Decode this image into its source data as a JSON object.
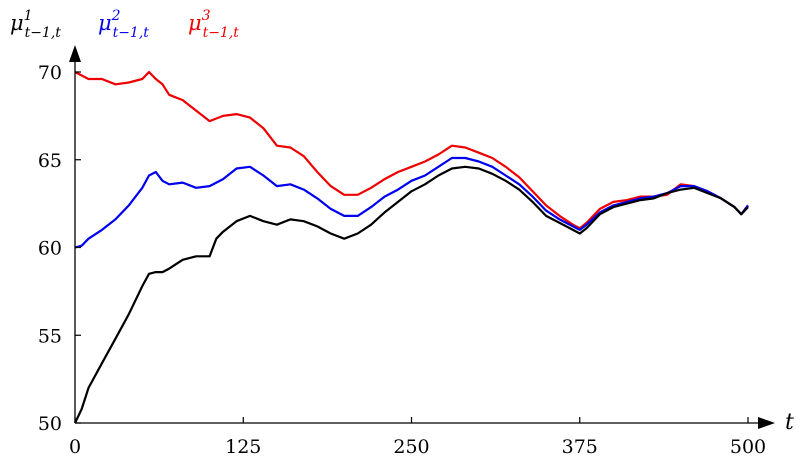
{
  "chart_data": {
    "type": "line",
    "xlabel": "t",
    "x_ticks": [
      0,
      125,
      250,
      375,
      500
    ],
    "y_ticks": [
      50,
      55,
      60,
      65,
      70
    ],
    "xlim": [
      0,
      500
    ],
    "ylim": [
      50,
      70
    ],
    "legend": [
      {
        "label": "μ",
        "sup": "1",
        "sub": "t−1,t",
        "color": "#000000"
      },
      {
        "label": "μ",
        "sup": "2",
        "sub": "t−1,t",
        "color": "#0000ee"
      },
      {
        "label": "μ",
        "sup": "3",
        "sub": "t−1,t",
        "color": "#ee0000"
      }
    ],
    "series": [
      {
        "name": "μ¹ t−1,t",
        "color": "#000000",
        "x": [
          0,
          5,
          10,
          20,
          30,
          40,
          50,
          55,
          60,
          65,
          70,
          80,
          90,
          100,
          105,
          110,
          120,
          130,
          140,
          150,
          160,
          170,
          180,
          190,
          200,
          210,
          220,
          230,
          240,
          250,
          260,
          270,
          280,
          290,
          300,
          310,
          320,
          330,
          340,
          350,
          360,
          370,
          375,
          380,
          390,
          400,
          410,
          420,
          430,
          440,
          450,
          460,
          470,
          480,
          490,
          495,
          500
        ],
        "y": [
          50.0,
          50.8,
          52.0,
          53.4,
          54.8,
          56.2,
          57.8,
          58.5,
          58.6,
          58.6,
          58.8,
          59.3,
          59.5,
          59.5,
          60.5,
          60.9,
          61.5,
          61.8,
          61.5,
          61.3,
          61.6,
          61.5,
          61.2,
          60.8,
          60.5,
          60.8,
          61.3,
          62.0,
          62.6,
          63.2,
          63.6,
          64.1,
          64.5,
          64.6,
          64.5,
          64.2,
          63.8,
          63.3,
          62.6,
          61.8,
          61.4,
          61.0,
          60.8,
          61.1,
          61.9,
          62.3,
          62.5,
          62.7,
          62.8,
          63.1,
          63.3,
          63.4,
          63.1,
          62.8,
          62.3,
          61.9,
          62.3
        ]
      },
      {
        "name": "μ² t−1,t",
        "color": "#0000ee",
        "x": [
          0,
          5,
          10,
          20,
          30,
          40,
          50,
          55,
          60,
          65,
          70,
          80,
          90,
          100,
          110,
          120,
          130,
          140,
          150,
          160,
          170,
          180,
          190,
          200,
          210,
          220,
          230,
          240,
          250,
          260,
          270,
          280,
          290,
          300,
          310,
          320,
          330,
          340,
          350,
          360,
          370,
          375,
          380,
          390,
          400,
          410,
          420,
          430,
          440,
          450,
          460,
          470,
          480,
          490,
          495,
          500
        ],
        "y": [
          60.0,
          60.1,
          60.5,
          61.0,
          61.6,
          62.4,
          63.4,
          64.1,
          64.3,
          63.8,
          63.6,
          63.7,
          63.4,
          63.5,
          63.9,
          64.5,
          64.6,
          64.1,
          63.5,
          63.6,
          63.3,
          62.8,
          62.2,
          61.8,
          61.8,
          62.3,
          62.9,
          63.3,
          63.8,
          64.1,
          64.6,
          65.1,
          65.1,
          64.9,
          64.6,
          64.1,
          63.6,
          62.9,
          62.1,
          61.6,
          61.2,
          61.0,
          61.3,
          62.0,
          62.4,
          62.6,
          62.8,
          62.9,
          63.1,
          63.5,
          63.5,
          63.2,
          62.8,
          62.3,
          61.9,
          62.4
        ]
      },
      {
        "name": "μ³ t−1,t",
        "color": "#ee0000",
        "x": [
          0,
          5,
          10,
          20,
          30,
          40,
          50,
          55,
          60,
          65,
          70,
          80,
          90,
          100,
          110,
          120,
          130,
          140,
          150,
          160,
          170,
          180,
          190,
          200,
          210,
          220,
          230,
          240,
          250,
          260,
          270,
          280,
          290,
          300,
          310,
          320,
          330,
          340,
          350,
          360,
          370,
          375,
          380,
          390,
          400,
          410,
          420,
          430,
          440,
          450,
          460,
          470,
          480,
          490,
          495,
          500
        ],
        "y": [
          70.0,
          69.8,
          69.6,
          69.6,
          69.3,
          69.4,
          69.6,
          70.0,
          69.6,
          69.3,
          68.7,
          68.4,
          67.8,
          67.2,
          67.5,
          67.6,
          67.4,
          66.8,
          65.8,
          65.7,
          65.2,
          64.3,
          63.5,
          63.0,
          63.0,
          63.4,
          63.9,
          64.3,
          64.6,
          64.9,
          65.3,
          65.8,
          65.7,
          65.4,
          65.1,
          64.6,
          64.0,
          63.2,
          62.4,
          61.8,
          61.3,
          61.1,
          61.4,
          62.2,
          62.6,
          62.7,
          62.9,
          62.9,
          63.0,
          63.6,
          63.5,
          63.2,
          62.8,
          62.3,
          61.9,
          62.4
        ]
      }
    ]
  }
}
